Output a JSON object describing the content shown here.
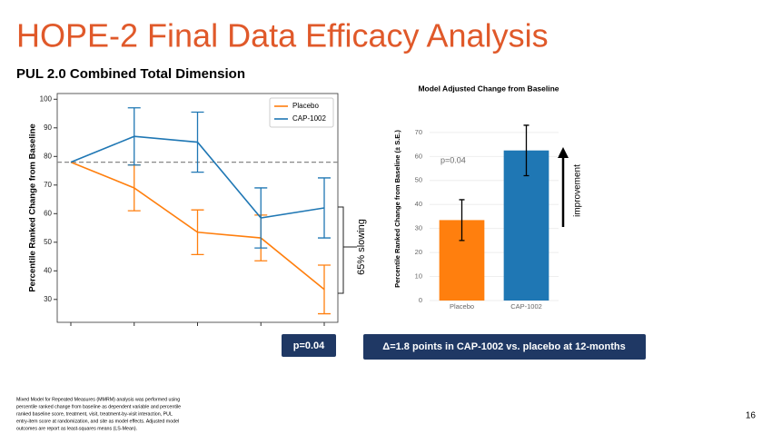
{
  "slide": {
    "title": "HOPE-2 Final Data Efficacy Analysis",
    "subtitle": "PUL 2.0 Combined Total Dimension",
    "callout": "Δ=1.8 points in CAP-1002 vs. placebo at 12-months",
    "footnote": [
      "Mixed Model for Repeated Measures (MMRM) analysis was performed using",
      "percentile ranked change from baseline as dependent variable and percentile",
      "ranked baseline score, treatment, visit, treatment-by-visit interaction, PUL",
      "entry-item score at randomization, and site as model effects. Adjusted model",
      "outcomes are report as least-squares means (LS-Mean)."
    ],
    "page": "16"
  },
  "chart_data": [
    {
      "type": "line",
      "y_label": "Percentile Ranked Change from Baseline",
      "categories": [
        null,
        null,
        null,
        null,
        null
      ],
      "series": [
        {
          "name": "Placebo",
          "color": "#ff7f0e",
          "values": [
            78,
            69,
            53.5,
            51.5,
            33.5
          ],
          "errors": [
            null,
            8,
            7.8,
            8,
            8.5
          ]
        },
        {
          "name": "CAP-1002",
          "color": "#1f77b4",
          "values": [
            78,
            87,
            85,
            58.5,
            62
          ],
          "errors": [
            null,
            10,
            10.5,
            10.5,
            10.5
          ]
        }
      ],
      "ylim": [
        22,
        102
      ],
      "yticks": [
        30,
        40,
        50,
        60,
        70,
        80,
        90,
        100
      ],
      "reference_line": 78,
      "legend": "upper right",
      "annotations": [
        "65% slowing",
        "p=0.04"
      ]
    },
    {
      "type": "bar",
      "title": "Model Adjusted Change from Baseline",
      "y_label": "Percentile Ranked Change from Baseline (± S.E.)",
      "categories": [
        "Placebo",
        "CAP-1002"
      ],
      "values": [
        33.5,
        62.5
      ],
      "errors": [
        8.5,
        10.5
      ],
      "colors": [
        "#ff7f0e",
        "#1f77b4"
      ],
      "ylim": [
        0,
        76
      ],
      "yticks": [
        0,
        10,
        20,
        30,
        40,
        50,
        60,
        70
      ],
      "grid": true,
      "annotations": [
        "p=0.04",
        "improvement"
      ]
    }
  ]
}
